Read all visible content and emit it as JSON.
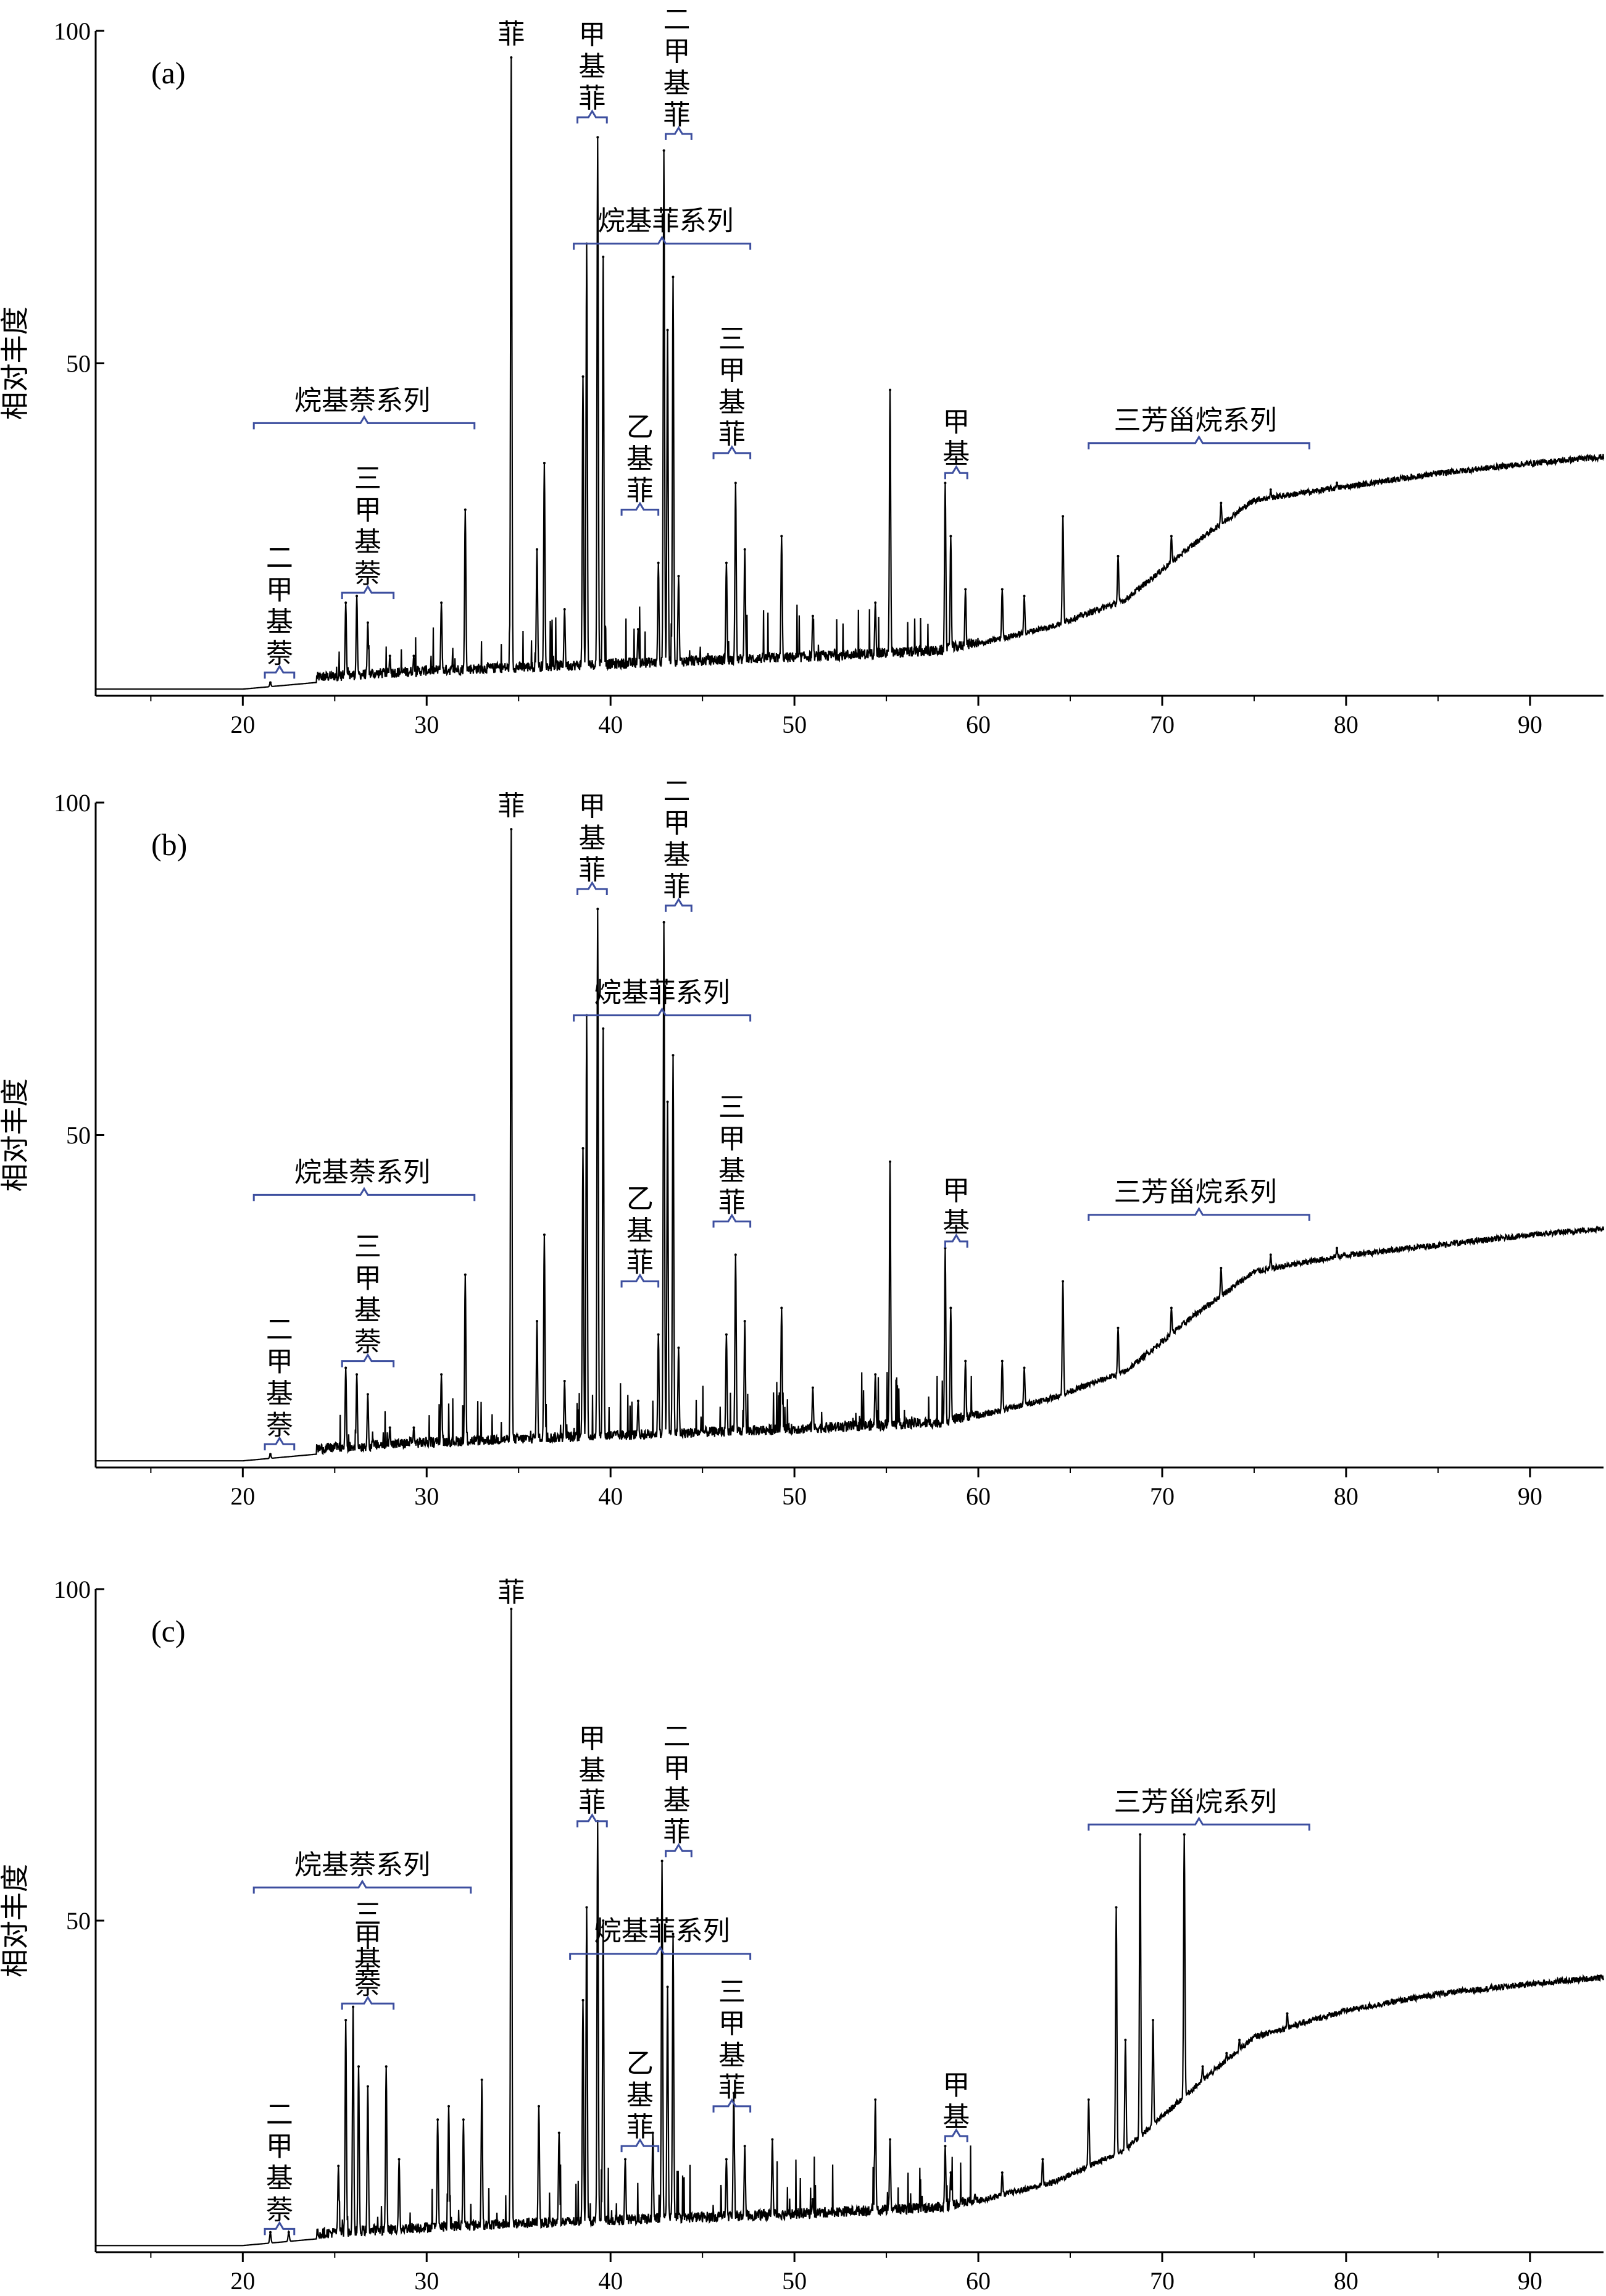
{
  "chart_data": [
    {
      "type": "line",
      "panel_label": "(a)",
      "ylabel": "相对丰度",
      "xlim": [
        12,
        94
      ],
      "ylim": [
        0,
        100
      ],
      "x_ticks": [
        20,
        30,
        40,
        50,
        60,
        70,
        80,
        90
      ],
      "y_ticks": [
        50,
        100
      ],
      "peaks": [
        {
          "x": 21.5,
          "y": 2
        },
        {
          "x": 25.6,
          "y": 14
        },
        {
          "x": 26.2,
          "y": 15
        },
        {
          "x": 26.8,
          "y": 11
        },
        {
          "x": 28.0,
          "y": 6
        },
        {
          "x": 29.3,
          "y": 6
        },
        {
          "x": 30.8,
          "y": 14
        },
        {
          "x": 32.1,
          "y": 28
        },
        {
          "x": 34.6,
          "y": 96
        },
        {
          "x": 36.0,
          "y": 22
        },
        {
          "x": 36.4,
          "y": 35
        },
        {
          "x": 37.5,
          "y": 13
        },
        {
          "x": 38.5,
          "y": 48
        },
        {
          "x": 38.7,
          "y": 68
        },
        {
          "x": 39.3,
          "y": 84
        },
        {
          "x": 39.6,
          "y": 66
        },
        {
          "x": 41.5,
          "y": 10
        },
        {
          "x": 42.6,
          "y": 20
        },
        {
          "x": 42.9,
          "y": 82
        },
        {
          "x": 43.1,
          "y": 55
        },
        {
          "x": 43.4,
          "y": 63
        },
        {
          "x": 43.7,
          "y": 18
        },
        {
          "x": 46.3,
          "y": 20
        },
        {
          "x": 46.8,
          "y": 32
        },
        {
          "x": 47.3,
          "y": 22
        },
        {
          "x": 49.3,
          "y": 24
        },
        {
          "x": 51.0,
          "y": 12
        },
        {
          "x": 54.4,
          "y": 14
        },
        {
          "x": 55.2,
          "y": 46
        },
        {
          "x": 58.2,
          "y": 32
        },
        {
          "x": 58.5,
          "y": 24
        },
        {
          "x": 59.3,
          "y": 16
        },
        {
          "x": 61.3,
          "y": 16
        },
        {
          "x": 62.5,
          "y": 15
        },
        {
          "x": 64.6,
          "y": 27
        },
        {
          "x": 67.6,
          "y": 21
        },
        {
          "x": 70.5,
          "y": 24
        },
        {
          "x": 73.2,
          "y": 29
        },
        {
          "x": 75.9,
          "y": 31
        },
        {
          "x": 79.5,
          "y": 32
        }
      ],
      "baseline": [
        {
          "x": 12,
          "y": 1
        },
        {
          "x": 20,
          "y": 1
        },
        {
          "x": 24,
          "y": 2
        },
        {
          "x": 30,
          "y": 3
        },
        {
          "x": 40,
          "y": 4
        },
        {
          "x": 50,
          "y": 5
        },
        {
          "x": 58,
          "y": 6
        },
        {
          "x": 64,
          "y": 10
        },
        {
          "x": 68,
          "y": 14
        },
        {
          "x": 72,
          "y": 23
        },
        {
          "x": 75,
          "y": 29
        },
        {
          "x": 80,
          "y": 31
        },
        {
          "x": 85,
          "y": 33
        },
        {
          "x": 90,
          "y": 34.5
        },
        {
          "x": 94,
          "y": 35.5
        }
      ],
      "annotations": [
        {
          "text": "二甲基萘",
          "vertical": true,
          "x": 22.0,
          "y": 25,
          "bracket": [
            21.2,
            22.8
          ],
          "bracket_y": 3.5
        },
        {
          "text": "三甲基萘",
          "vertical": true,
          "x": 26.8,
          "y": 37,
          "bracket": [
            25.4,
            28.2
          ],
          "bracket_y": 15.5
        },
        {
          "text": "烷基萘系列",
          "vertical": false,
          "x": 26.5,
          "y": 45,
          "bracket": [
            20.6,
            32.6
          ],
          "bracket_y": 41
        },
        {
          "text": "菲",
          "vertical": true,
          "x": 34.6,
          "y": 100,
          "bracket": null
        },
        {
          "text": "甲基菲",
          "vertical": true,
          "x": 39.0,
          "y": 100,
          "bracket": [
            38.2,
            39.8
          ],
          "bracket_y": 87
        },
        {
          "text": "二甲基菲",
          "vertical": true,
          "x": 43.6,
          "y": 102,
          "bracket": [
            43.0,
            44.4
          ],
          "bracket_y": 84.5
        },
        {
          "text": "烷基菲系列",
          "vertical": false,
          "x": 43.0,
          "y": 69,
          "bracket": [
            38.0,
            47.6
          ],
          "bracket_y": 68
        },
        {
          "text": "乙基菲",
          "vertical": true,
          "x": 41.6,
          "y": 43,
          "bracket": [
            40.6,
            42.6
          ],
          "bracket_y": 28
        },
        {
          "text": "三甲基菲",
          "vertical": true,
          "x": 46.6,
          "y": 55,
          "bracket": [
            45.6,
            47.6
          ],
          "bracket_y": 36.5
        },
        {
          "text": "甲基",
          "vertical": true,
          "x": 58.8,
          "y": 45,
          "bracket": [
            58.2,
            59.4
          ],
          "bracket_y": 33.5
        },
        {
          "text": "三芳甾烷系列",
          "vertical": false,
          "x": 71.8,
          "y": 41,
          "bracket": [
            66.0,
            78.0
          ],
          "bracket_y": 38
        }
      ]
    },
    {
      "type": "line",
      "panel_label": "(b)",
      "ylabel": "相对丰度",
      "xlim": [
        12,
        94
      ],
      "ylim": [
        0,
        100
      ],
      "x_ticks": [
        20,
        30,
        40,
        50,
        60,
        70,
        80,
        90
      ],
      "y_ticks": [
        50,
        100
      ],
      "peaks": [
        {
          "x": 21.5,
          "y": 2
        },
        {
          "x": 25.6,
          "y": 15
        },
        {
          "x": 26.2,
          "y": 14
        },
        {
          "x": 26.8,
          "y": 11
        },
        {
          "x": 28.0,
          "y": 6
        },
        {
          "x": 29.3,
          "y": 6
        },
        {
          "x": 30.8,
          "y": 14
        },
        {
          "x": 32.1,
          "y": 29
        },
        {
          "x": 34.6,
          "y": 96
        },
        {
          "x": 36.0,
          "y": 22
        },
        {
          "x": 36.4,
          "y": 35
        },
        {
          "x": 37.5,
          "y": 13
        },
        {
          "x": 38.5,
          "y": 48
        },
        {
          "x": 38.7,
          "y": 68
        },
        {
          "x": 39.3,
          "y": 84
        },
        {
          "x": 39.6,
          "y": 66
        },
        {
          "x": 41.5,
          "y": 10
        },
        {
          "x": 42.6,
          "y": 20
        },
        {
          "x": 42.9,
          "y": 82
        },
        {
          "x": 43.1,
          "y": 55
        },
        {
          "x": 43.4,
          "y": 62
        },
        {
          "x": 43.7,
          "y": 18
        },
        {
          "x": 46.3,
          "y": 20
        },
        {
          "x": 46.8,
          "y": 32
        },
        {
          "x": 47.3,
          "y": 22
        },
        {
          "x": 49.3,
          "y": 24
        },
        {
          "x": 51.0,
          "y": 12
        },
        {
          "x": 54.4,
          "y": 14
        },
        {
          "x": 55.2,
          "y": 46
        },
        {
          "x": 58.2,
          "y": 33
        },
        {
          "x": 58.5,
          "y": 24
        },
        {
          "x": 59.3,
          "y": 16
        },
        {
          "x": 61.3,
          "y": 16
        },
        {
          "x": 62.5,
          "y": 15
        },
        {
          "x": 64.6,
          "y": 28
        },
        {
          "x": 67.6,
          "y": 21
        },
        {
          "x": 70.5,
          "y": 24
        },
        {
          "x": 73.2,
          "y": 30
        },
        {
          "x": 75.9,
          "y": 32
        },
        {
          "x": 79.5,
          "y": 33
        }
      ],
      "baseline": [
        {
          "x": 12,
          "y": 1
        },
        {
          "x": 20,
          "y": 1
        },
        {
          "x": 24,
          "y": 2
        },
        {
          "x": 30,
          "y": 3
        },
        {
          "x": 40,
          "y": 4
        },
        {
          "x": 50,
          "y": 5
        },
        {
          "x": 58,
          "y": 6
        },
        {
          "x": 64,
          "y": 10
        },
        {
          "x": 68,
          "y": 14
        },
        {
          "x": 72,
          "y": 23
        },
        {
          "x": 75,
          "y": 29
        },
        {
          "x": 80,
          "y": 31.5
        },
        {
          "x": 85,
          "y": 33
        },
        {
          "x": 90,
          "y": 34.5
        },
        {
          "x": 94,
          "y": 35.5
        }
      ],
      "annotations": [
        {
          "text": "二甲基萘",
          "vertical": true,
          "x": 22.0,
          "y": 25,
          "bracket": [
            21.2,
            22.8
          ],
          "bracket_y": 3.5
        },
        {
          "text": "三甲基萘",
          "vertical": true,
          "x": 26.8,
          "y": 37,
          "bracket": [
            25.4,
            28.2
          ],
          "bracket_y": 16
        },
        {
          "text": "烷基萘系列",
          "vertical": false,
          "x": 26.5,
          "y": 45,
          "bracket": [
            20.6,
            32.6
          ],
          "bracket_y": 41
        },
        {
          "text": "菲",
          "vertical": true,
          "x": 34.6,
          "y": 100,
          "bracket": null
        },
        {
          "text": "甲基菲",
          "vertical": true,
          "x": 39.0,
          "y": 100,
          "bracket": [
            38.2,
            39.8
          ],
          "bracket_y": 87
        },
        {
          "text": "二甲基菲",
          "vertical": true,
          "x": 43.6,
          "y": 102,
          "bracket": [
            43.0,
            44.4
          ],
          "bracket_y": 84.5
        },
        {
          "text": "烷基菲系列",
          "vertical": false,
          "x": 42.8,
          "y": 69,
          "bracket": [
            38.0,
            47.6
          ],
          "bracket_y": 68
        },
        {
          "text": "乙基菲",
          "vertical": true,
          "x": 41.6,
          "y": 43,
          "bracket": [
            40.6,
            42.6
          ],
          "bracket_y": 28
        },
        {
          "text": "三甲基菲",
          "vertical": true,
          "x": 46.6,
          "y": 55,
          "bracket": [
            45.6,
            47.6
          ],
          "bracket_y": 37
        },
        {
          "text": "甲基",
          "vertical": true,
          "x": 58.8,
          "y": 45,
          "bracket": [
            58.2,
            59.4
          ],
          "bracket_y": 34
        },
        {
          "text": "三芳甾烷系列",
          "vertical": false,
          "x": 71.8,
          "y": 41,
          "bracket": [
            66.0,
            78.0
          ],
          "bracket_y": 38
        }
      ]
    },
    {
      "type": "line",
      "panel_label": "(c)",
      "ylabel": "相对丰度",
      "xlim": [
        12,
        94
      ],
      "ylim": [
        0,
        100
      ],
      "x_ticks": [
        20,
        30,
        40,
        50,
        60,
        70,
        80,
        90
      ],
      "y_ticks": [
        50,
        100
      ],
      "peaks": [
        {
          "x": 21.5,
          "y": 3
        },
        {
          "x": 22.5,
          "y": 3
        },
        {
          "x": 25.2,
          "y": 13
        },
        {
          "x": 25.6,
          "y": 35
        },
        {
          "x": 26.0,
          "y": 37
        },
        {
          "x": 26.3,
          "y": 28
        },
        {
          "x": 26.8,
          "y": 25
        },
        {
          "x": 27.8,
          "y": 28
        },
        {
          "x": 28.5,
          "y": 14
        },
        {
          "x": 30.6,
          "y": 20
        },
        {
          "x": 31.2,
          "y": 22
        },
        {
          "x": 32.0,
          "y": 20
        },
        {
          "x": 33.0,
          "y": 26
        },
        {
          "x": 34.6,
          "y": 97
        },
        {
          "x": 36.1,
          "y": 22
        },
        {
          "x": 37.2,
          "y": 18
        },
        {
          "x": 38.5,
          "y": 38
        },
        {
          "x": 38.7,
          "y": 52
        },
        {
          "x": 39.3,
          "y": 65
        },
        {
          "x": 39.6,
          "y": 50
        },
        {
          "x": 40.8,
          "y": 14
        },
        {
          "x": 42.3,
          "y": 18
        },
        {
          "x": 42.8,
          "y": 59
        },
        {
          "x": 43.1,
          "y": 40
        },
        {
          "x": 43.4,
          "y": 48
        },
        {
          "x": 46.3,
          "y": 14
        },
        {
          "x": 46.7,
          "y": 24
        },
        {
          "x": 47.3,
          "y": 16
        },
        {
          "x": 48.8,
          "y": 17
        },
        {
          "x": 51.0,
          "y": 8
        },
        {
          "x": 54.4,
          "y": 23
        },
        {
          "x": 55.2,
          "y": 17
        },
        {
          "x": 58.2,
          "y": 16
        },
        {
          "x": 58.5,
          "y": 12
        },
        {
          "x": 61.3,
          "y": 12
        },
        {
          "x": 63.5,
          "y": 14
        },
        {
          "x": 66.0,
          "y": 23
        },
        {
          "x": 67.5,
          "y": 52
        },
        {
          "x": 68.0,
          "y": 32
        },
        {
          "x": 68.8,
          "y": 63
        },
        {
          "x": 69.5,
          "y": 35
        },
        {
          "x": 71.2,
          "y": 63
        },
        {
          "x": 72.2,
          "y": 28
        },
        {
          "x": 73.5,
          "y": 30
        },
        {
          "x": 74.2,
          "y": 32
        },
        {
          "x": 76.8,
          "y": 36
        }
      ],
      "baseline": [
        {
          "x": 12,
          "y": 1
        },
        {
          "x": 20,
          "y": 1
        },
        {
          "x": 24,
          "y": 2
        },
        {
          "x": 30,
          "y": 3
        },
        {
          "x": 40,
          "y": 4
        },
        {
          "x": 50,
          "y": 5
        },
        {
          "x": 58,
          "y": 6
        },
        {
          "x": 64,
          "y": 10
        },
        {
          "x": 68,
          "y": 15
        },
        {
          "x": 72,
          "y": 25
        },
        {
          "x": 75,
          "y": 32
        },
        {
          "x": 80,
          "y": 36
        },
        {
          "x": 85,
          "y": 38.5
        },
        {
          "x": 90,
          "y": 40
        },
        {
          "x": 94,
          "y": 41
        }
      ],
      "annotations": [
        {
          "text": "二甲基萘",
          "vertical": true,
          "x": 22.0,
          "y": 19,
          "bracket": [
            21.2,
            22.8
          ],
          "bracket_y": 3.5
        },
        {
          "text": "三甲基萘",
          "vertical": true,
          "x": 26.8,
          "y": 50,
          "bracket": [
            25.4,
            28.2
          ],
          "bracket_y": 37.5,
          "small": true
        },
        {
          "text": "烷基萘系列",
          "vertical": false,
          "x": 26.5,
          "y": 58,
          "bracket": [
            20.6,
            32.4
          ],
          "bracket_y": 55
        },
        {
          "text": "菲",
          "vertical": true,
          "x": 34.6,
          "y": 100,
          "bracket": null
        },
        {
          "text": "甲基菲",
          "vertical": true,
          "x": 39.0,
          "y": 82,
          "bracket": [
            38.2,
            39.8
          ],
          "bracket_y": 65
        },
        {
          "text": "二甲基菲",
          "vertical": true,
          "x": 43.6,
          "y": 82,
          "bracket": [
            43.0,
            44.4
          ],
          "bracket_y": 60.5
        },
        {
          "text": "烷基菲系列",
          "vertical": false,
          "x": 42.8,
          "y": 49,
          "bracket": [
            37.8,
            47.6
          ],
          "bracket_y": 45
        },
        {
          "text": "乙基菲",
          "vertical": true,
          "x": 41.6,
          "y": 28,
          "bracket": [
            40.6,
            42.6
          ],
          "bracket_y": 16
        },
        {
          "text": "三甲基菲",
          "vertical": true,
          "x": 46.6,
          "y": 39,
          "bracket": [
            45.6,
            47.6
          ],
          "bracket_y": 22
        },
        {
          "text": "甲基",
          "vertical": true,
          "x": 58.8,
          "y": 28,
          "bracket": [
            58.2,
            59.4
          ],
          "bracket_y": 17.5
        },
        {
          "text": "三芳甾烷系列",
          "vertical": false,
          "x": 71.8,
          "y": 68,
          "bracket": [
            66.0,
            78.0
          ],
          "bracket_y": 64.5
        }
      ]
    }
  ]
}
